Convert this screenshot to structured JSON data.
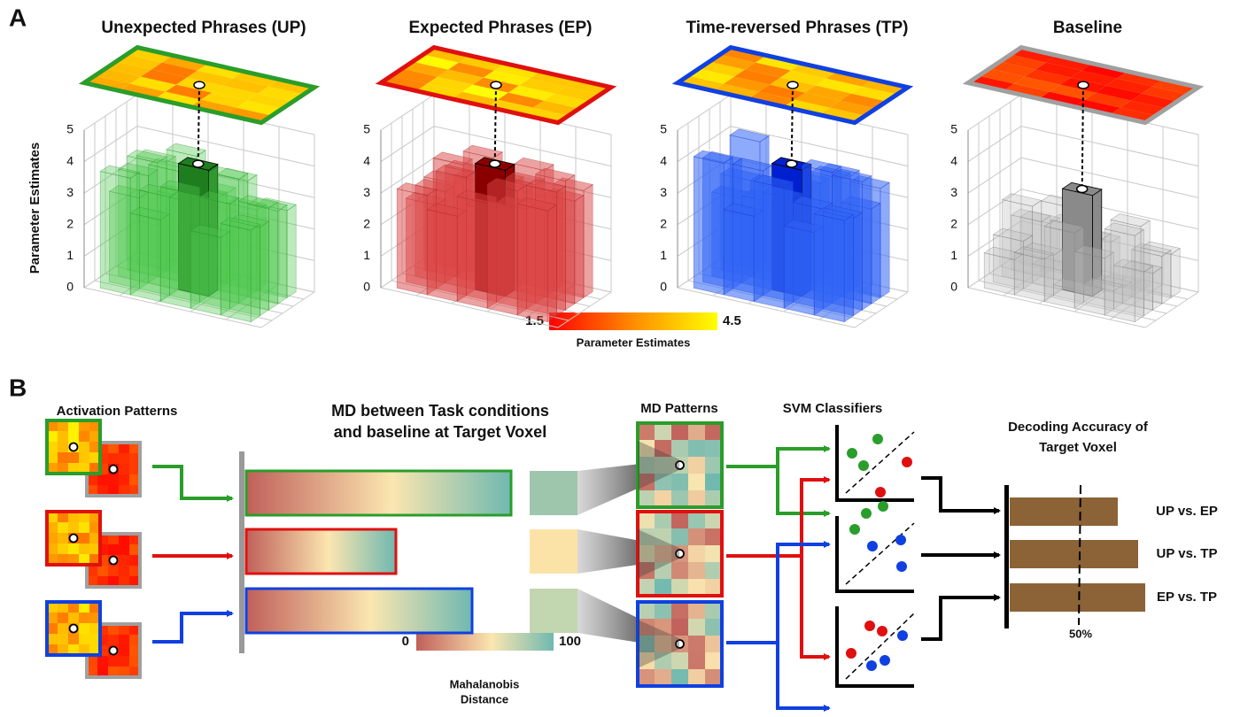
{
  "panel_a": {
    "label": "A",
    "y_axis_label": "Parameter Estimates",
    "panels": [
      {
        "title": "Unexpected Phrases (UP)",
        "yticks": [
          0,
          1,
          2,
          3,
          4,
          5
        ]
      },
      {
        "title": "Expected Phrases (EP)",
        "yticks": [
          0,
          1,
          2,
          3,
          4,
          5
        ]
      },
      {
        "title": "Time-reversed Phrases (TP)",
        "yticks": [
          0,
          1,
          2,
          3,
          4,
          5
        ]
      },
      {
        "title": "Baseline",
        "yticks": [
          0,
          1,
          2,
          3,
          4,
          5
        ]
      }
    ],
    "colorbar": {
      "min": 1.5,
      "max": 4.5,
      "label": "Parameter Estimates"
    }
  },
  "panel_b": {
    "label": "B",
    "activation_title": "Activation Patterns",
    "md_title": [
      "MD between Task conditions",
      "and baseline at Target Voxel"
    ],
    "md_patterns_title": "MD Patterns",
    "svm_title": "SVM Classifiers",
    "decoding_title": [
      "Decoding Accuracy of",
      "Target Voxel"
    ],
    "comparisons": [
      "UP vs. EP",
      "UP vs. TP",
      "EP vs. TP"
    ],
    "chance_label": "50%",
    "md_scale": {
      "min": 0,
      "max": 100,
      "label": [
        "Mahalanobis",
        "Distance"
      ]
    }
  }
}
